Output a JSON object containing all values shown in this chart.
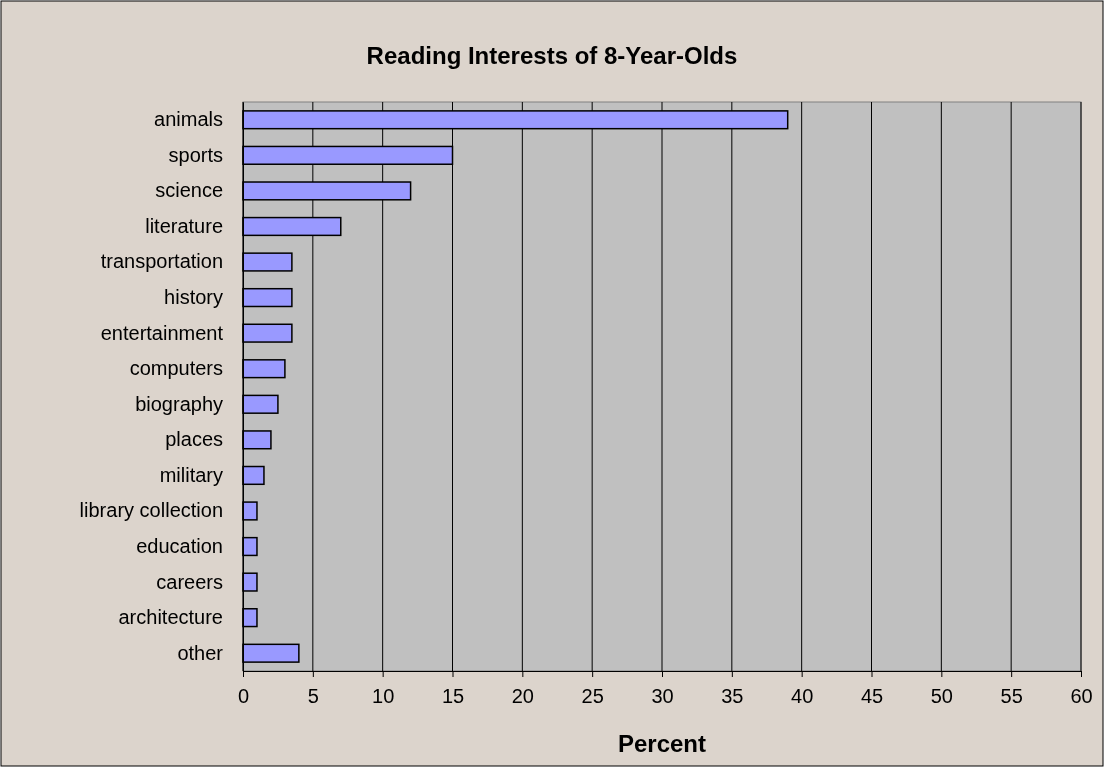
{
  "chart_data": {
    "type": "bar",
    "orientation": "horizontal",
    "title": "Reading Interests of 8-Year-Olds",
    "xlabel": "Percent",
    "categories": [
      "animals",
      "sports",
      "science",
      "literature",
      "transportation",
      "history",
      "entertainment",
      "computers",
      "biography",
      "places",
      "military",
      "library collection",
      "education",
      "careers",
      "architecture",
      "other"
    ],
    "values": [
      39,
      15,
      12,
      7,
      3.5,
      3.5,
      3.5,
      3,
      2.5,
      2,
      1.5,
      1,
      1,
      1,
      1,
      4
    ],
    "color": "#9999ff",
    "xlim": [
      0,
      60
    ],
    "xticks": [
      0,
      5,
      10,
      15,
      20,
      25,
      30,
      35,
      40,
      45,
      50,
      55,
      60
    ],
    "grid": "x"
  }
}
